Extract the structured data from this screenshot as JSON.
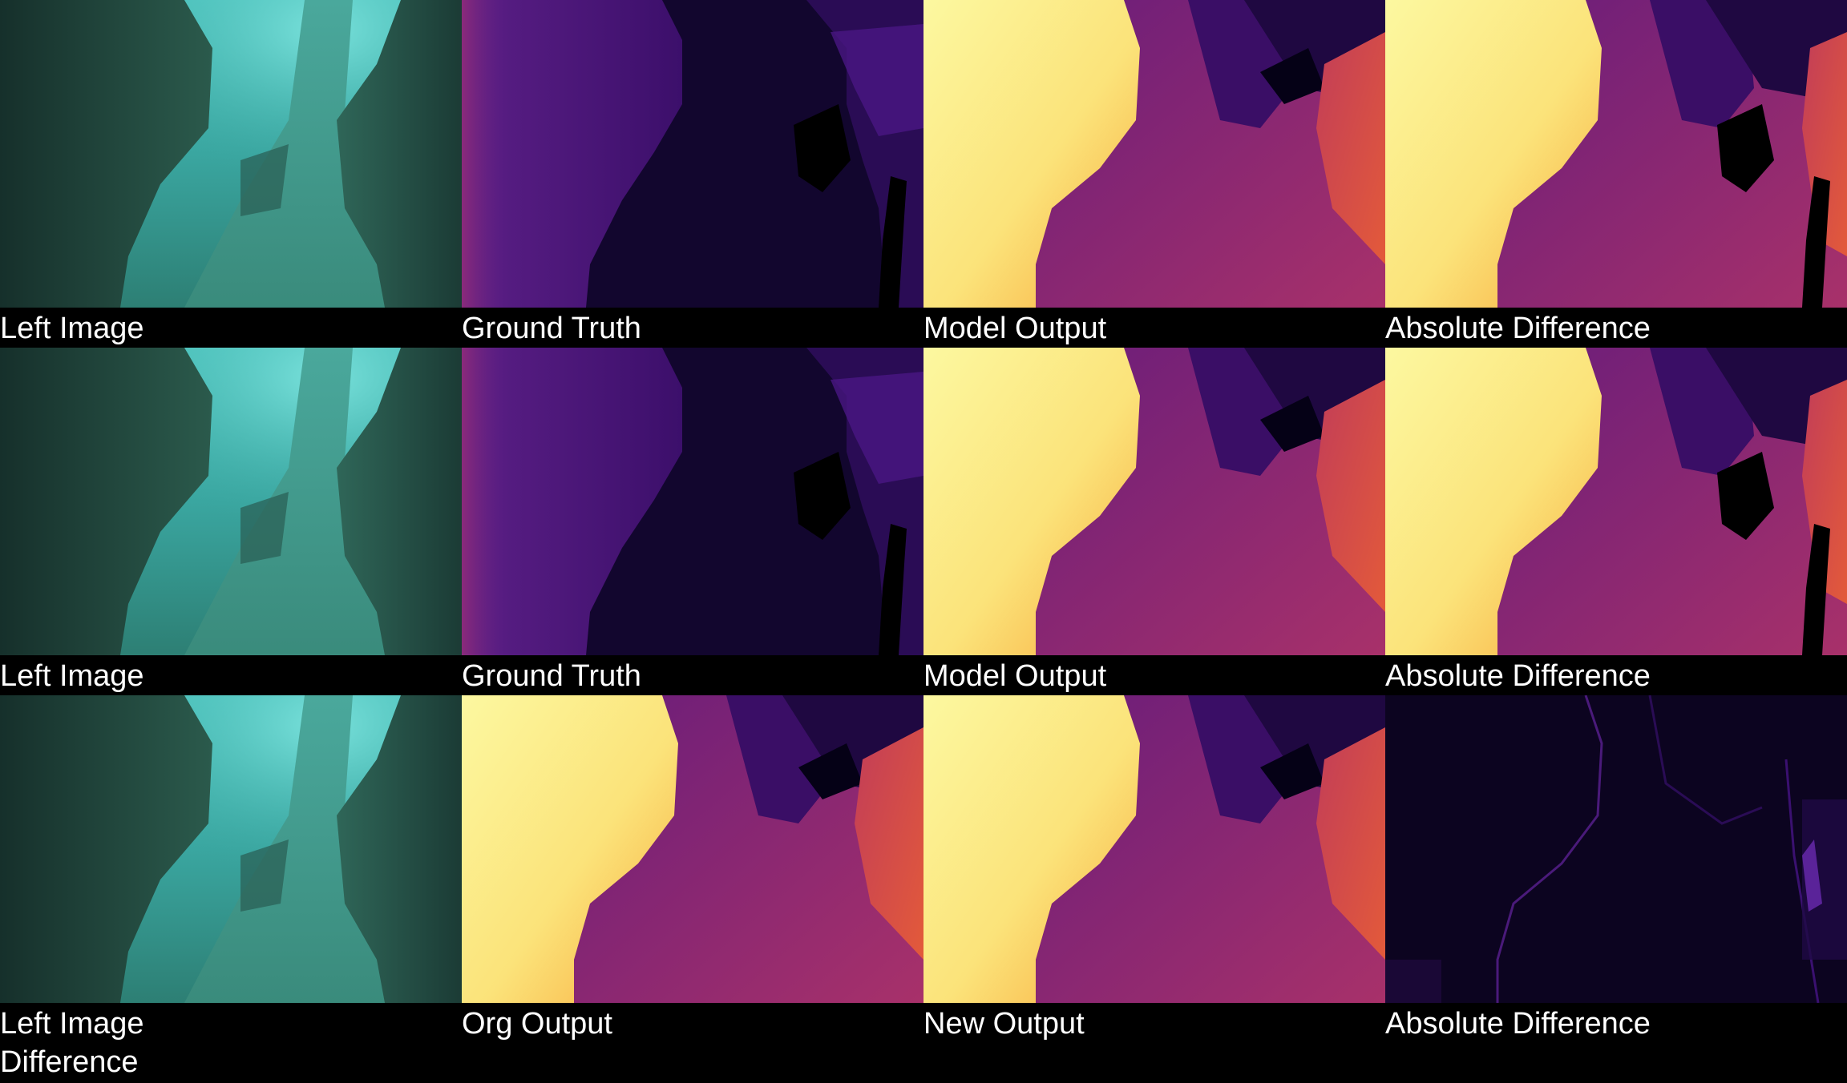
{
  "rows": [
    {
      "labels": [
        "Left Image",
        "Ground Truth",
        "Model Output",
        "Absolute Difference"
      ]
    },
    {
      "labels": [
        "Left Image",
        "Ground Truth",
        "Model Output",
        "Absolute Difference"
      ]
    },
    {
      "labels": [
        "Left Image",
        "Org Output",
        "New Output",
        "Absolute Difference"
      ]
    }
  ],
  "extra_label": "Difference",
  "panel_types": [
    "underwater-photo",
    "disparity-ground-truth",
    "disparity-prediction",
    "absolute-difference-map"
  ],
  "colormap": {
    "name": "inferno",
    "stops": [
      "#000004",
      "#1b0c41",
      "#4a0c6b",
      "#781c6d",
      "#a52c60",
      "#cf4446",
      "#ed6925",
      "#fb9b06",
      "#f7d13d",
      "#fcffa4"
    ]
  }
}
